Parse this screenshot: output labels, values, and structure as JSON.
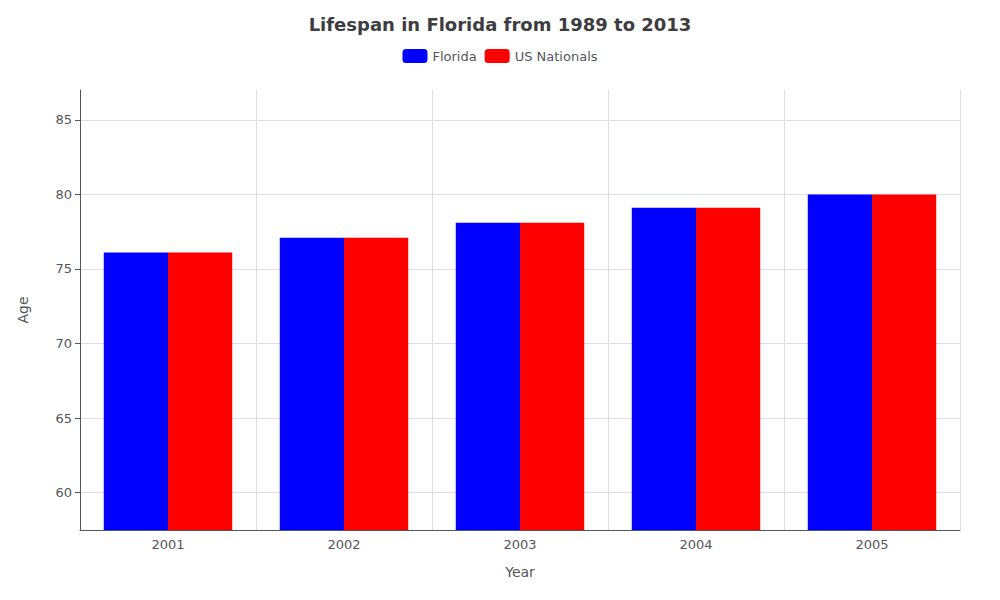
{
  "chart_data": {
    "type": "bar",
    "title": "Lifespan in Florida from 1989 to 2013",
    "xlabel": "Year",
    "ylabel": "Age",
    "categories": [
      "2001",
      "2002",
      "2003",
      "2004",
      "2005"
    ],
    "series": [
      {
        "name": "Florida",
        "color": "#0000ff",
        "values": [
          76.1,
          77.1,
          78.1,
          79.1,
          80.0
        ]
      },
      {
        "name": "US Nationals",
        "color": "#ff0000",
        "values": [
          76.1,
          77.1,
          78.1,
          79.1,
          80.0
        ]
      }
    ],
    "ylim": [
      57.5,
      87
    ],
    "yticks": [
      60,
      65,
      70,
      75,
      80,
      85
    ],
    "grid": true,
    "legend": "top"
  }
}
